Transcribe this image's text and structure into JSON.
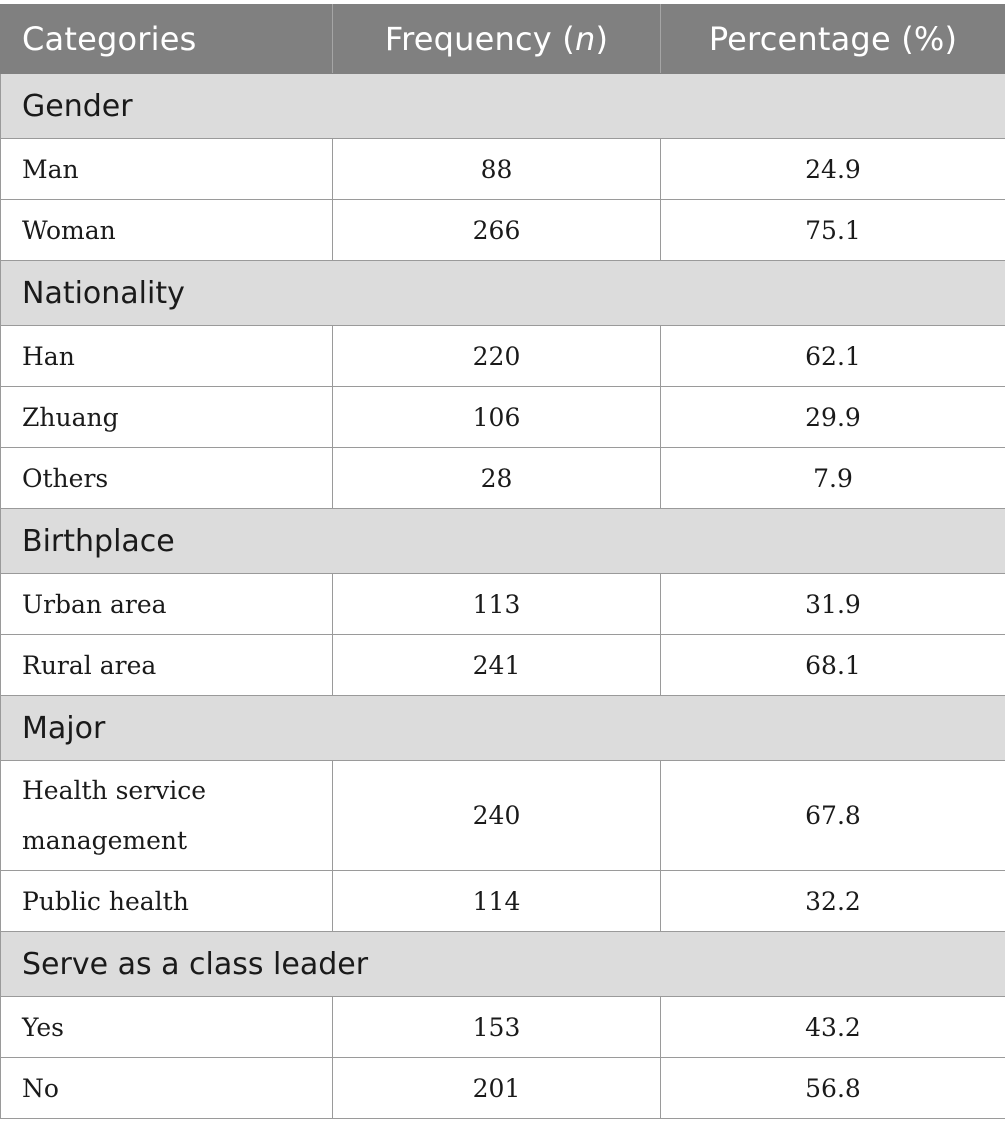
{
  "table": {
    "headers": {
      "categories": "Categories",
      "frequency_prefix": "Frequency (",
      "frequency_italic": "n",
      "frequency_suffix": ")",
      "percentage": "Percentage (%)"
    },
    "groups": [
      {
        "name": "Gender",
        "rows": [
          {
            "label": "Man",
            "frequency": "88",
            "percentage": "24.9"
          },
          {
            "label": "Woman",
            "frequency": "266",
            "percentage": "75.1"
          }
        ]
      },
      {
        "name": "Nationality",
        "rows": [
          {
            "label": "Han",
            "frequency": "220",
            "percentage": "62.1"
          },
          {
            "label": "Zhuang",
            "frequency": "106",
            "percentage": "29.9"
          },
          {
            "label": "Others",
            "frequency": "28",
            "percentage": "7.9"
          }
        ]
      },
      {
        "name": "Birthplace",
        "rows": [
          {
            "label": "Urban area",
            "frequency": "113",
            "percentage": "31.9"
          },
          {
            "label": "Rural area",
            "frequency": "241",
            "percentage": "68.1"
          }
        ]
      },
      {
        "name": "Major",
        "rows": [
          {
            "label": "Health service management",
            "frequency": "240",
            "percentage": "67.8"
          },
          {
            "label": "Public health",
            "frequency": "114",
            "percentage": "32.2"
          }
        ]
      },
      {
        "name": "Serve as a class leader",
        "rows": [
          {
            "label": "Yes",
            "frequency": "153",
            "percentage": "43.2"
          },
          {
            "label": "No",
            "frequency": "201",
            "percentage": "56.8"
          }
        ]
      }
    ]
  }
}
